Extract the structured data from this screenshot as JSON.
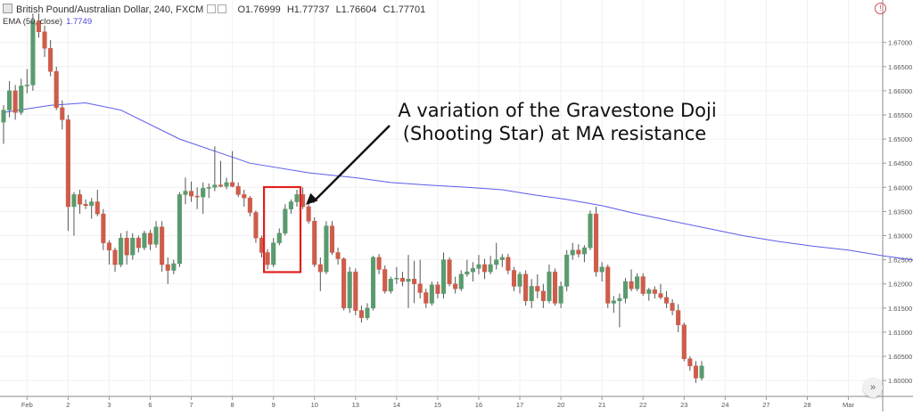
{
  "header": {
    "symbol": "British Pound/Australian Dollar, 240, FXCM",
    "ohlc": {
      "o": "O1.76999",
      "h": "H1.77737",
      "l": "L1.76604",
      "c": "C1.77701"
    },
    "ema_label": "EMA (50, close)",
    "ema_value": "1.7749"
  },
  "annotation": {
    "line1": "A variation of the Gravestone Doji",
    "line2": "(Shooting Star) at MA resistance"
  },
  "colors": {
    "up": "#5a9b6e",
    "down": "#cd5d4b",
    "ema": "#5b5bea",
    "highlight": "#e0201e",
    "grid": "#f1f1f1"
  },
  "chart_data": {
    "type": "candlestick",
    "ylim": [
      1.5967,
      1.6788
    ],
    "y_ticks": [
      "1.67000",
      "1.66500",
      "1.66000",
      "1.65500",
      "1.65000",
      "1.64500",
      "1.64000",
      "1.63500",
      "1.63000",
      "1.62500",
      "1.62000",
      "1.61500",
      "1.61000",
      "1.60500",
      "1.60000"
    ],
    "x_ticks": [
      {
        "label": "Feb",
        "i": 4
      },
      {
        "label": "2",
        "i": 11
      },
      {
        "label": "3",
        "i": 18
      },
      {
        "label": "6",
        "i": 25
      },
      {
        "label": "7",
        "i": 32
      },
      {
        "label": "8",
        "i": 39
      },
      {
        "label": "9",
        "i": 46
      },
      {
        "label": "10",
        "i": 53
      },
      {
        "label": "13",
        "i": 60
      },
      {
        "label": "14",
        "i": 67
      },
      {
        "label": "15",
        "i": 74
      },
      {
        "label": "16",
        "i": 81
      },
      {
        "label": "17",
        "i": 88
      },
      {
        "label": "20",
        "i": 95
      },
      {
        "label": "21",
        "i": 102
      },
      {
        "label": "22",
        "i": 109
      },
      {
        "label": "23",
        "i": 116
      },
      {
        "label": "24",
        "i": 123
      },
      {
        "label": "27",
        "i": 130
      },
      {
        "label": "28",
        "i": 137
      },
      {
        "label": "Mar",
        "i": 144
      }
    ],
    "highlight_range": [
      45,
      50
    ],
    "candles": [
      {
        "o": 1.6535,
        "h": 1.657,
        "l": 1.649,
        "c": 1.656
      },
      {
        "o": 1.656,
        "h": 1.662,
        "l": 1.6545,
        "c": 1.66
      },
      {
        "o": 1.66,
        "h": 1.6612,
        "l": 1.654,
        "c": 1.6555
      },
      {
        "o": 1.6555,
        "h": 1.6625,
        "l": 1.655,
        "c": 1.661
      },
      {
        "o": 1.661,
        "h": 1.6645,
        "l": 1.6595,
        "c": 1.6612
      },
      {
        "o": 1.6612,
        "h": 1.676,
        "l": 1.66,
        "c": 1.6745
      },
      {
        "o": 1.6745,
        "h": 1.676,
        "l": 1.671,
        "c": 1.6722
      },
      {
        "o": 1.6722,
        "h": 1.6735,
        "l": 1.667,
        "c": 1.6688
      },
      {
        "o": 1.6688,
        "h": 1.6705,
        "l": 1.663,
        "c": 1.664
      },
      {
        "o": 1.664,
        "h": 1.665,
        "l": 1.656,
        "c": 1.6565
      },
      {
        "o": 1.6565,
        "h": 1.658,
        "l": 1.652,
        "c": 1.654
      },
      {
        "o": 1.654,
        "h": 1.655,
        "l": 1.631,
        "c": 1.636
      },
      {
        "o": 1.636,
        "h": 1.639,
        "l": 1.63,
        "c": 1.6385
      },
      {
        "o": 1.6385,
        "h": 1.6395,
        "l": 1.6345,
        "c": 1.6365
      },
      {
        "o": 1.6365,
        "h": 1.6375,
        "l": 1.6355,
        "c": 1.6362
      },
      {
        "o": 1.6362,
        "h": 1.6378,
        "l": 1.6335,
        "c": 1.637
      },
      {
        "o": 1.637,
        "h": 1.6395,
        "l": 1.634,
        "c": 1.6345
      },
      {
        "o": 1.6345,
        "h": 1.6355,
        "l": 1.627,
        "c": 1.6285
      },
      {
        "o": 1.6285,
        "h": 1.629,
        "l": 1.624,
        "c": 1.627
      },
      {
        "o": 1.627,
        "h": 1.6275,
        "l": 1.6225,
        "c": 1.624
      },
      {
        "o": 1.624,
        "h": 1.6305,
        "l": 1.6235,
        "c": 1.6295
      },
      {
        "o": 1.6295,
        "h": 1.631,
        "l": 1.624,
        "c": 1.626
      },
      {
        "o": 1.626,
        "h": 1.6305,
        "l": 1.625,
        "c": 1.6295
      },
      {
        "o": 1.6295,
        "h": 1.63,
        "l": 1.6265,
        "c": 1.6275
      },
      {
        "o": 1.6275,
        "h": 1.631,
        "l": 1.627,
        "c": 1.6305
      },
      {
        "o": 1.6305,
        "h": 1.6312,
        "l": 1.627,
        "c": 1.6282
      },
      {
        "o": 1.6282,
        "h": 1.633,
        "l": 1.6275,
        "c": 1.6318
      },
      {
        "o": 1.6318,
        "h": 1.633,
        "l": 1.6225,
        "c": 1.624
      },
      {
        "o": 1.624,
        "h": 1.6255,
        "l": 1.62,
        "c": 1.6228
      },
      {
        "o": 1.6228,
        "h": 1.625,
        "l": 1.622,
        "c": 1.6242
      },
      {
        "o": 1.6242,
        "h": 1.639,
        "l": 1.6235,
        "c": 1.6385
      },
      {
        "o": 1.6385,
        "h": 1.642,
        "l": 1.6365,
        "c": 1.6392
      },
      {
        "o": 1.6392,
        "h": 1.6412,
        "l": 1.637,
        "c": 1.6382
      },
      {
        "o": 1.6382,
        "h": 1.64,
        "l": 1.6355,
        "c": 1.638
      },
      {
        "o": 1.638,
        "h": 1.641,
        "l": 1.6345,
        "c": 1.6398
      },
      {
        "o": 1.6398,
        "h": 1.6408,
        "l": 1.6378,
        "c": 1.64
      },
      {
        "o": 1.64,
        "h": 1.6485,
        "l": 1.6392,
        "c": 1.6405
      },
      {
        "o": 1.6405,
        "h": 1.6455,
        "l": 1.64,
        "c": 1.6402
      },
      {
        "o": 1.6402,
        "h": 1.642,
        "l": 1.6396,
        "c": 1.641
      },
      {
        "o": 1.641,
        "h": 1.6475,
        "l": 1.64,
        "c": 1.6402
      },
      {
        "o": 1.6402,
        "h": 1.641,
        "l": 1.638,
        "c": 1.6385
      },
      {
        "o": 1.6385,
        "h": 1.6395,
        "l": 1.636,
        "c": 1.6378
      },
      {
        "o": 1.6378,
        "h": 1.6382,
        "l": 1.634,
        "c": 1.6348
      },
      {
        "o": 1.6348,
        "h": 1.6352,
        "l": 1.6285,
        "c": 1.6295
      },
      {
        "o": 1.6295,
        "h": 1.63,
        "l": 1.6255,
        "c": 1.6265
      },
      {
        "o": 1.6265,
        "h": 1.6272,
        "l": 1.623,
        "c": 1.624
      },
      {
        "o": 1.624,
        "h": 1.6295,
        "l": 1.6235,
        "c": 1.6285
      },
      {
        "o": 1.6285,
        "h": 1.6315,
        "l": 1.628,
        "c": 1.6305
      },
      {
        "o": 1.6305,
        "h": 1.6365,
        "l": 1.63,
        "c": 1.6355
      },
      {
        "o": 1.6355,
        "h": 1.6375,
        "l": 1.6345,
        "c": 1.637
      },
      {
        "o": 1.637,
        "h": 1.6395,
        "l": 1.636,
        "c": 1.6385
      },
      {
        "o": 1.6385,
        "h": 1.64,
        "l": 1.6355,
        "c": 1.636
      },
      {
        "o": 1.636,
        "h": 1.6368,
        "l": 1.6325,
        "c": 1.633
      },
      {
        "o": 1.633,
        "h": 1.6338,
        "l": 1.6235,
        "c": 1.624
      },
      {
        "o": 1.624,
        "h": 1.6255,
        "l": 1.6185,
        "c": 1.6225
      },
      {
        "o": 1.6225,
        "h": 1.633,
        "l": 1.622,
        "c": 1.632
      },
      {
        "o": 1.632,
        "h": 1.633,
        "l": 1.626,
        "c": 1.6265
      },
      {
        "o": 1.6265,
        "h": 1.6275,
        "l": 1.624,
        "c": 1.6252
      },
      {
        "o": 1.6252,
        "h": 1.6255,
        "l": 1.6145,
        "c": 1.615
      },
      {
        "o": 1.615,
        "h": 1.6235,
        "l": 1.614,
        "c": 1.6225
      },
      {
        "o": 1.6225,
        "h": 1.6232,
        "l": 1.6135,
        "c": 1.6145
      },
      {
        "o": 1.6145,
        "h": 1.6155,
        "l": 1.612,
        "c": 1.613
      },
      {
        "o": 1.613,
        "h": 1.616,
        "l": 1.6125,
        "c": 1.615
      },
      {
        "o": 1.615,
        "h": 1.6258,
        "l": 1.6145,
        "c": 1.6255
      },
      {
        "o": 1.6255,
        "h": 1.6262,
        "l": 1.622,
        "c": 1.623
      },
      {
        "o": 1.623,
        "h": 1.6238,
        "l": 1.618,
        "c": 1.6185
      },
      {
        "o": 1.6185,
        "h": 1.6215,
        "l": 1.618,
        "c": 1.621
      },
      {
        "o": 1.621,
        "h": 1.6235,
        "l": 1.62,
        "c": 1.6212
      },
      {
        "o": 1.6212,
        "h": 1.6225,
        "l": 1.6195,
        "c": 1.6205
      },
      {
        "o": 1.6205,
        "h": 1.626,
        "l": 1.615,
        "c": 1.621
      },
      {
        "o": 1.621,
        "h": 1.6248,
        "l": 1.616,
        "c": 1.62
      },
      {
        "o": 1.62,
        "h": 1.625,
        "l": 1.617,
        "c": 1.6182
      },
      {
        "o": 1.6182,
        "h": 1.619,
        "l": 1.615,
        "c": 1.616
      },
      {
        "o": 1.616,
        "h": 1.6205,
        "l": 1.6155,
        "c": 1.6198
      },
      {
        "o": 1.6198,
        "h": 1.6205,
        "l": 1.617,
        "c": 1.618
      },
      {
        "o": 1.618,
        "h": 1.6265,
        "l": 1.617,
        "c": 1.625
      },
      {
        "o": 1.625,
        "h": 1.6255,
        "l": 1.6195,
        "c": 1.62
      },
      {
        "o": 1.62,
        "h": 1.6215,
        "l": 1.618,
        "c": 1.619
      },
      {
        "o": 1.619,
        "h": 1.6228,
        "l": 1.6185,
        "c": 1.622
      },
      {
        "o": 1.622,
        "h": 1.625,
        "l": 1.6215,
        "c": 1.6225
      },
      {
        "o": 1.6225,
        "h": 1.6245,
        "l": 1.6205,
        "c": 1.6232
      },
      {
        "o": 1.6232,
        "h": 1.626,
        "l": 1.622,
        "c": 1.624
      },
      {
        "o": 1.624,
        "h": 1.6252,
        "l": 1.621,
        "c": 1.6225
      },
      {
        "o": 1.6225,
        "h": 1.6258,
        "l": 1.622,
        "c": 1.624
      },
      {
        "o": 1.624,
        "h": 1.6285,
        "l": 1.623,
        "c": 1.625
      },
      {
        "o": 1.625,
        "h": 1.6262,
        "l": 1.6235,
        "c": 1.6255
      },
      {
        "o": 1.6255,
        "h": 1.6262,
        "l": 1.622,
        "c": 1.6228
      },
      {
        "o": 1.6228,
        "h": 1.6235,
        "l": 1.6185,
        "c": 1.6195
      },
      {
        "o": 1.6195,
        "h": 1.6225,
        "l": 1.618,
        "c": 1.622
      },
      {
        "o": 1.622,
        "h": 1.6228,
        "l": 1.6155,
        "c": 1.6165
      },
      {
        "o": 1.6165,
        "h": 1.621,
        "l": 1.615,
        "c": 1.6195
      },
      {
        "o": 1.6195,
        "h": 1.622,
        "l": 1.617,
        "c": 1.6185
      },
      {
        "o": 1.6185,
        "h": 1.62,
        "l": 1.615,
        "c": 1.6165
      },
      {
        "o": 1.6165,
        "h": 1.624,
        "l": 1.616,
        "c": 1.6225
      },
      {
        "o": 1.6225,
        "h": 1.6232,
        "l": 1.6155,
        "c": 1.616
      },
      {
        "o": 1.616,
        "h": 1.6205,
        "l": 1.615,
        "c": 1.6195
      },
      {
        "o": 1.6195,
        "h": 1.627,
        "l": 1.6185,
        "c": 1.626
      },
      {
        "o": 1.626,
        "h": 1.6285,
        "l": 1.625,
        "c": 1.627
      },
      {
        "o": 1.627,
        "h": 1.6282,
        "l": 1.6255,
        "c": 1.6262
      },
      {
        "o": 1.6262,
        "h": 1.628,
        "l": 1.6245,
        "c": 1.6275
      },
      {
        "o": 1.6275,
        "h": 1.6352,
        "l": 1.627,
        "c": 1.6345
      },
      {
        "o": 1.6345,
        "h": 1.636,
        "l": 1.6215,
        "c": 1.6225
      },
      {
        "o": 1.6225,
        "h": 1.6245,
        "l": 1.6205,
        "c": 1.6235
      },
      {
        "o": 1.6235,
        "h": 1.624,
        "l": 1.615,
        "c": 1.616
      },
      {
        "o": 1.616,
        "h": 1.6175,
        "l": 1.614,
        "c": 1.6165
      },
      {
        "o": 1.6165,
        "h": 1.618,
        "l": 1.611,
        "c": 1.617
      },
      {
        "o": 1.617,
        "h": 1.6212,
        "l": 1.616,
        "c": 1.6205
      },
      {
        "o": 1.6205,
        "h": 1.623,
        "l": 1.6185,
        "c": 1.619
      },
      {
        "o": 1.619,
        "h": 1.6222,
        "l": 1.6185,
        "c": 1.6215
      },
      {
        "o": 1.6215,
        "h": 1.6222,
        "l": 1.6175,
        "c": 1.618
      },
      {
        "o": 1.618,
        "h": 1.6192,
        "l": 1.6165,
        "c": 1.6188
      },
      {
        "o": 1.6188,
        "h": 1.6195,
        "l": 1.617,
        "c": 1.618
      },
      {
        "o": 1.618,
        "h": 1.62,
        "l": 1.6168,
        "c": 1.6172
      },
      {
        "o": 1.6172,
        "h": 1.6185,
        "l": 1.615,
        "c": 1.616
      },
      {
        "o": 1.616,
        "h": 1.6168,
        "l": 1.6135,
        "c": 1.6145
      },
      {
        "o": 1.6145,
        "h": 1.6158,
        "l": 1.61,
        "c": 1.6115
      },
      {
        "o": 1.6115,
        "h": 1.612,
        "l": 1.604,
        "c": 1.6045
      },
      {
        "o": 1.6045,
        "h": 1.605,
        "l": 1.602,
        "c": 1.603
      },
      {
        "o": 1.603,
        "h": 1.604,
        "l": 1.5995,
        "c": 1.6005
      },
      {
        "o": 1.6005,
        "h": 1.604,
        "l": 1.6,
        "c": 1.603
      }
    ],
    "ema": [
      [
        0,
        1.6555
      ],
      [
        8,
        1.657
      ],
      [
        14,
        1.6575
      ],
      [
        20,
        1.656
      ],
      [
        30,
        1.65
      ],
      [
        42,
        1.645
      ],
      [
        52,
        1.643
      ],
      [
        60,
        1.642
      ],
      [
        66,
        1.641
      ],
      [
        72,
        1.6405
      ],
      [
        79,
        1.64
      ],
      [
        85,
        1.6395
      ],
      [
        90,
        1.6385
      ],
      [
        96,
        1.6375
      ],
      [
        102,
        1.6362
      ],
      [
        108,
        1.6345
      ],
      [
        114,
        1.633
      ],
      [
        120,
        1.6315
      ],
      [
        126,
        1.63
      ],
      [
        132,
        1.6288
      ],
      [
        138,
        1.6278
      ],
      [
        144,
        1.627
      ],
      [
        150,
        1.6258
      ],
      [
        156,
        1.6248
      ],
      [
        162,
        1.6238
      ],
      [
        168,
        1.6225
      ],
      [
        175,
        1.6213
      ],
      [
        181,
        1.62
      ],
      [
        188,
        1.6188
      ]
    ]
  }
}
